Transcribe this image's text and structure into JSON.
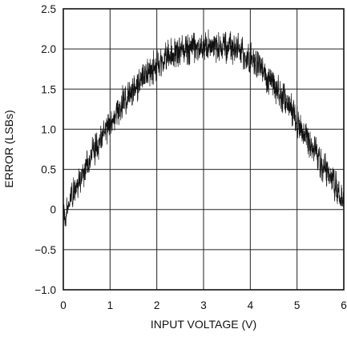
{
  "chart_data": {
    "type": "line",
    "title": "",
    "xlabel": "INPUT VOLTAGE (V)",
    "ylabel": "ERROR (LSBs)",
    "xlim": [
      0,
      6
    ],
    "ylim": [
      -1.0,
      2.5
    ],
    "x_ticks": [
      0,
      1,
      2,
      3,
      4,
      5,
      6
    ],
    "x_tick_labels": [
      "0",
      "1",
      "2",
      "3",
      "4",
      "5",
      "6"
    ],
    "y_ticks": [
      2.5,
      2.0,
      1.5,
      1.0,
      0.5,
      0,
      -0.5,
      -1.0
    ],
    "y_tick_labels": [
      "2.5",
      "2.0",
      "1.5",
      "1.0",
      "0.5",
      "0",
      "−0.5",
      "−1.0"
    ],
    "grid": true,
    "series": [
      {
        "x": [
          0,
          0.25,
          0.5,
          0.75,
          1.0,
          1.25,
          1.5,
          1.75,
          2.0,
          2.25,
          2.5,
          2.75,
          3.0,
          3.25,
          3.5,
          3.75,
          4.0,
          4.25,
          4.5,
          4.75,
          5.0,
          5.25,
          5.5,
          5.75,
          6.0
        ],
        "values": [
          -0.1,
          0.25,
          0.55,
          0.82,
          1.07,
          1.3,
          1.5,
          1.67,
          1.8,
          1.9,
          1.97,
          2.01,
          2.03,
          2.04,
          2.03,
          1.98,
          1.88,
          1.73,
          1.55,
          1.35,
          1.12,
          0.87,
          0.6,
          0.35,
          0.1
        ],
        "noise_band_lsb": 0.35,
        "color": "#111111"
      }
    ]
  }
}
